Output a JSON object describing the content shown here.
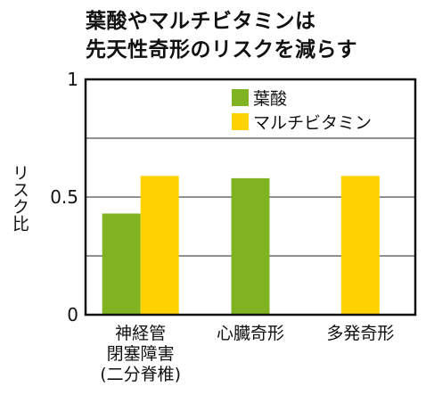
{
  "chart_data": {
    "type": "bar",
    "title": "葉酸やマルチビタミンは先天性奇形のリスクを減らす",
    "title_lines": [
      "葉酸やマルチビタミンは",
      "先天性奇形のリスクを減らす"
    ],
    "ylabel": "リスク比",
    "xlabel": "",
    "ylim": [
      0,
      1
    ],
    "yticks": [
      0,
      0.5,
      1
    ],
    "yticks_labels": [
      "0",
      "0.5",
      "1"
    ],
    "gridlines": [
      0.25,
      0.5,
      0.75
    ],
    "grid": true,
    "legend_position": "top-right",
    "categories": [
      {
        "lines": [
          "神経管",
          "閉塞障害",
          "(二分脊椎)"
        ]
      },
      {
        "lines": [
          "心臓奇形"
        ]
      },
      {
        "lines": [
          "多発奇形"
        ]
      }
    ],
    "series": [
      {
        "name": "葉酸",
        "color": "#7fb321",
        "values": [
          0.43,
          0.58,
          null
        ]
      },
      {
        "name": "マルチビタミン",
        "color": "#ffd200",
        "values": [
          0.59,
          null,
          0.59
        ]
      }
    ]
  }
}
